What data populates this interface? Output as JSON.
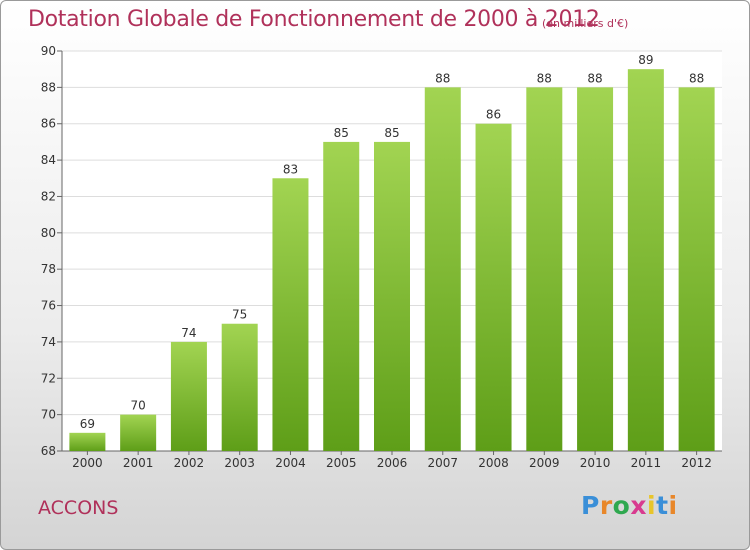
{
  "title": "Dotation Globale de Fonctionnement de 2000 à 2012",
  "unit": "(en milliers d'€)",
  "place": "ACCONS",
  "logo": {
    "text": "Proxiti",
    "letter_colors": [
      "#3a8fd8",
      "#e8872a",
      "#2fa84f",
      "#d83a8f",
      "#e8c52a",
      "#3a8fd8",
      "#e8872a"
    ]
  },
  "colors": {
    "title": "#b0315a",
    "bar_light": "#a2d452",
    "bar_dark": "#5e9e18",
    "text": "#333333",
    "grid": "#dddddd"
  },
  "chart_data": {
    "type": "bar",
    "title": "Dotation Globale de Fonctionnement de 2000 à 2012",
    "categories": [
      "2000",
      "2001",
      "2002",
      "2003",
      "2004",
      "2005",
      "2006",
      "2007",
      "2008",
      "2009",
      "2010",
      "2011",
      "2012"
    ],
    "values": [
      69,
      70,
      74,
      75,
      83,
      85,
      85,
      88,
      86,
      88,
      88,
      89,
      88
    ],
    "ylim": [
      68,
      90
    ],
    "yticks": [
      68,
      70,
      72,
      74,
      76,
      78,
      80,
      82,
      84,
      86,
      88,
      90
    ],
    "grid": true
  }
}
